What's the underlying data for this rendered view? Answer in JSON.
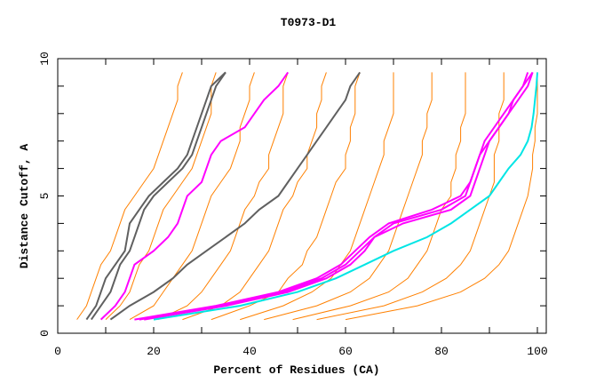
{
  "chart_data": {
    "type": "line",
    "title": "T0973-D1",
    "xlabel": "Percent of Residues (CA)",
    "ylabel": "Distance Cutoff, A",
    "xlim": [
      0,
      100
    ],
    "ylim": [
      0,
      10
    ],
    "x_ticks": [
      "0",
      "20",
      "40",
      "60",
      "80",
      "100"
    ],
    "y_ticks": [
      "0",
      "5",
      "10"
    ],
    "grid": false,
    "cutoffs": [
      0.5,
      1,
      1.5,
      2,
      2.5,
      3,
      3.5,
      4,
      4.5,
      5,
      5.5,
      6,
      6.5,
      7,
      7.5,
      8,
      8.5,
      9,
      9.5
    ],
    "colors": {
      "models": "#ff8000",
      "gray": "#606060",
      "magenta": "#ff00ff",
      "cyan": "#00e5e5"
    },
    "series_models": [
      [
        4,
        6,
        7,
        8,
        9,
        11,
        12,
        13,
        14,
        16,
        18,
        20,
        21,
        22,
        23,
        24,
        25,
        25,
        26
      ],
      [
        10,
        13,
        15,
        16,
        17,
        19,
        20,
        21,
        22,
        24,
        26,
        28,
        29,
        30,
        31,
        32,
        32,
        32,
        33
      ],
      [
        15,
        20,
        22,
        24,
        26,
        28,
        29,
        30,
        31,
        32,
        34,
        36,
        37,
        38,
        38,
        39,
        40,
        40,
        41
      ],
      [
        21,
        27,
        30,
        32,
        34,
        36,
        37,
        38,
        39,
        41,
        42,
        44,
        44,
        45,
        46,
        47,
        47,
        47,
        48
      ],
      [
        26,
        34,
        38,
        40,
        42,
        44,
        45,
        46,
        47,
        49,
        50,
        52,
        52,
        53,
        54,
        54,
        55,
        55,
        56
      ],
      [
        32,
        40,
        46,
        48,
        51,
        52,
        54,
        55,
        56,
        57,
        58,
        60,
        60,
        61,
        61,
        62,
        62,
        62,
        63
      ],
      [
        38,
        47,
        53,
        57,
        59,
        61,
        62,
        63,
        64,
        65,
        66,
        67,
        68,
        68,
        69,
        70,
        70,
        70,
        70
      ],
      [
        43,
        54,
        61,
        65,
        67,
        69,
        70,
        71,
        72,
        73,
        74,
        75,
        76,
        76,
        77,
        77,
        78,
        78,
        78
      ],
      [
        49,
        61,
        69,
        73,
        75,
        77,
        78,
        79,
        80,
        82,
        82,
        83,
        83,
        84,
        84,
        85,
        85,
        85,
        85
      ],
      [
        54,
        68,
        76,
        81,
        84,
        86,
        87,
        88,
        89,
        90,
        91,
        91,
        91,
        92,
        92,
        92,
        93,
        93,
        93
      ],
      [
        60,
        75,
        84,
        89,
        92,
        94,
        95,
        96,
        97,
        98,
        98.5,
        99,
        99,
        99.5,
        99.5,
        100,
        100,
        100,
        100
      ]
    ],
    "series_highlight": [
      {
        "name": "gray-1",
        "color": "gray",
        "values": [
          6,
          8,
          9,
          10,
          12,
          14,
          14.5,
          15,
          17,
          19,
          22,
          25,
          27,
          28,
          29,
          30,
          31,
          32,
          35
        ]
      },
      {
        "name": "gray-2",
        "color": "gray",
        "values": [
          7,
          9,
          11,
          12,
          13,
          15,
          16,
          17,
          18,
          20,
          23,
          26,
          28,
          29,
          30,
          31,
          32,
          33,
          35
        ]
      },
      {
        "name": "gray-3",
        "color": "gray",
        "values": [
          11,
          15,
          20,
          24,
          27,
          31,
          35,
          39,
          42,
          46,
          48,
          50,
          52,
          54,
          56,
          58,
          60,
          61,
          63
        ]
      },
      {
        "name": "magenta-1",
        "color": "magenta",
        "values": [
          9,
          12,
          14,
          15,
          16,
          20,
          23,
          25,
          26,
          27,
          30,
          31,
          32,
          34,
          39,
          41,
          43,
          46,
          48
        ]
      },
      {
        "name": "magenta-2",
        "color": "magenta",
        "values": [
          18,
          35,
          48,
          56,
          61,
          64,
          66,
          70,
          80,
          85,
          86,
          87,
          88,
          89,
          91,
          93,
          95,
          97,
          99
        ]
      },
      {
        "name": "magenta-3",
        "color": "magenta",
        "values": [
          17,
          34,
          47,
          55,
          60,
          63,
          66,
          72,
          82,
          86,
          87,
          88,
          89,
          90,
          92,
          94,
          96,
          98,
          99
        ]
      },
      {
        "name": "magenta-4",
        "color": "magenta",
        "values": [
          16,
          33,
          46,
          54,
          59,
          62,
          65,
          69,
          78,
          84,
          86,
          87,
          88,
          90,
          92,
          94,
          95,
          97,
          98
        ]
      },
      {
        "name": "cyan-1",
        "color": "cyan",
        "values": [
          20,
          38,
          50,
          58,
          64,
          70,
          77,
          82,
          86,
          90,
          92,
          94,
          96.5,
          98,
          98.8,
          99.2,
          99.5,
          99.8,
          100
        ]
      }
    ]
  }
}
